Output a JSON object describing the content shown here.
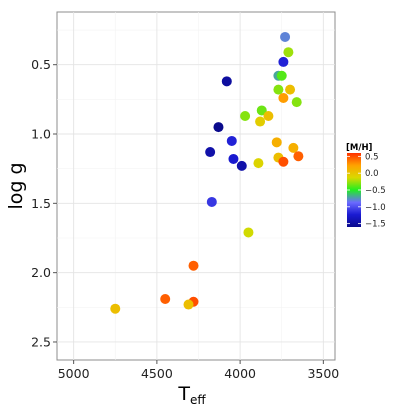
{
  "chart_data": {
    "type": "scatter",
    "title": "",
    "xlabel": "T",
    "xlabel_subscript": "eff",
    "ylabel": "log g",
    "xlim": [
      5100,
      3430
    ],
    "ylim": [
      0.12,
      2.63
    ],
    "x_reversed": true,
    "y_reversed": true,
    "x_ticks": [
      5000,
      4500,
      4000,
      3500
    ],
    "x_tick_labels": [
      "5000",
      "4500",
      "4000",
      "3500"
    ],
    "y_ticks": [
      0.0,
      0.5,
      1.0,
      1.5,
      2.0,
      2.5
    ],
    "y_tick_labels": [
      "0.0",
      "0.5",
      "1.0",
      "1.5",
      "2.0",
      "2.5"
    ],
    "grid": true,
    "color_variable": "[M/H]",
    "color_range": [
      -1.6,
      0.6
    ],
    "legend_position": "right",
    "legend_ticks": [
      0.5,
      0.0,
      -0.5,
      -1.0,
      -1.5
    ],
    "legend_tick_labels": [
      "0.5",
      "0.0",
      "−0.5",
      "−1.0",
      "−1.5"
    ],
    "colorbar_stops": [
      "#0a0a8c",
      "#1a1ad2",
      "#6b6bff",
      "#21ee21",
      "#d9d900",
      "#ffa200",
      "#ff3000"
    ],
    "points": [
      {
        "teff": 3730,
        "logg": 0.3,
        "mh": -0.8
      },
      {
        "teff": 3710,
        "logg": 0.41,
        "mh": -0.25
      },
      {
        "teff": 3740,
        "logg": 0.48,
        "mh": -1.2
      },
      {
        "teff": 3770,
        "logg": 0.58,
        "mh": -0.7
      },
      {
        "teff": 3750,
        "logg": 0.58,
        "mh": -0.4
      },
      {
        "teff": 4080,
        "logg": 0.62,
        "mh": -1.5
      },
      {
        "teff": 3770,
        "logg": 0.68,
        "mh": -0.3
      },
      {
        "teff": 3700,
        "logg": 0.68,
        "mh": 0.05
      },
      {
        "teff": 3740,
        "logg": 0.74,
        "mh": 0.25
      },
      {
        "teff": 3660,
        "logg": 0.77,
        "mh": -0.3
      },
      {
        "teff": 3870,
        "logg": 0.83,
        "mh": -0.35
      },
      {
        "teff": 3970,
        "logg": 0.87,
        "mh": -0.3
      },
      {
        "teff": 3830,
        "logg": 0.87,
        "mh": 0.05
      },
      {
        "teff": 3880,
        "logg": 0.91,
        "mh": -0.05
      },
      {
        "teff": 4130,
        "logg": 0.95,
        "mh": -1.6
      },
      {
        "teff": 4050,
        "logg": 1.05,
        "mh": -1.2
      },
      {
        "teff": 3780,
        "logg": 1.06,
        "mh": 0.15
      },
      {
        "teff": 3680,
        "logg": 1.1,
        "mh": 0.15
      },
      {
        "teff": 4180,
        "logg": 1.13,
        "mh": -1.45
      },
      {
        "teff": 3770,
        "logg": 1.17,
        "mh": 0.05
      },
      {
        "teff": 4040,
        "logg": 1.18,
        "mh": -1.25
      },
      {
        "teff": 3650,
        "logg": 1.16,
        "mh": 0.45
      },
      {
        "teff": 3740,
        "logg": 1.2,
        "mh": 0.5
      },
      {
        "teff": 3890,
        "logg": 1.21,
        "mh": -0.1
      },
      {
        "teff": 3990,
        "logg": 1.23,
        "mh": -1.45
      },
      {
        "teff": 4170,
        "logg": 1.49,
        "mh": -1.1
      },
      {
        "teff": 3950,
        "logg": 1.71,
        "mh": -0.15
      },
      {
        "teff": 4280,
        "logg": 1.95,
        "mh": 0.45
      },
      {
        "teff": 4450,
        "logg": 2.19,
        "mh": 0.45
      },
      {
        "teff": 4280,
        "logg": 2.21,
        "mh": 0.5
      },
      {
        "teff": 4310,
        "logg": 2.23,
        "mh": 0.05
      },
      {
        "teff": 4750,
        "logg": 2.26,
        "mh": 0.05
      }
    ]
  }
}
